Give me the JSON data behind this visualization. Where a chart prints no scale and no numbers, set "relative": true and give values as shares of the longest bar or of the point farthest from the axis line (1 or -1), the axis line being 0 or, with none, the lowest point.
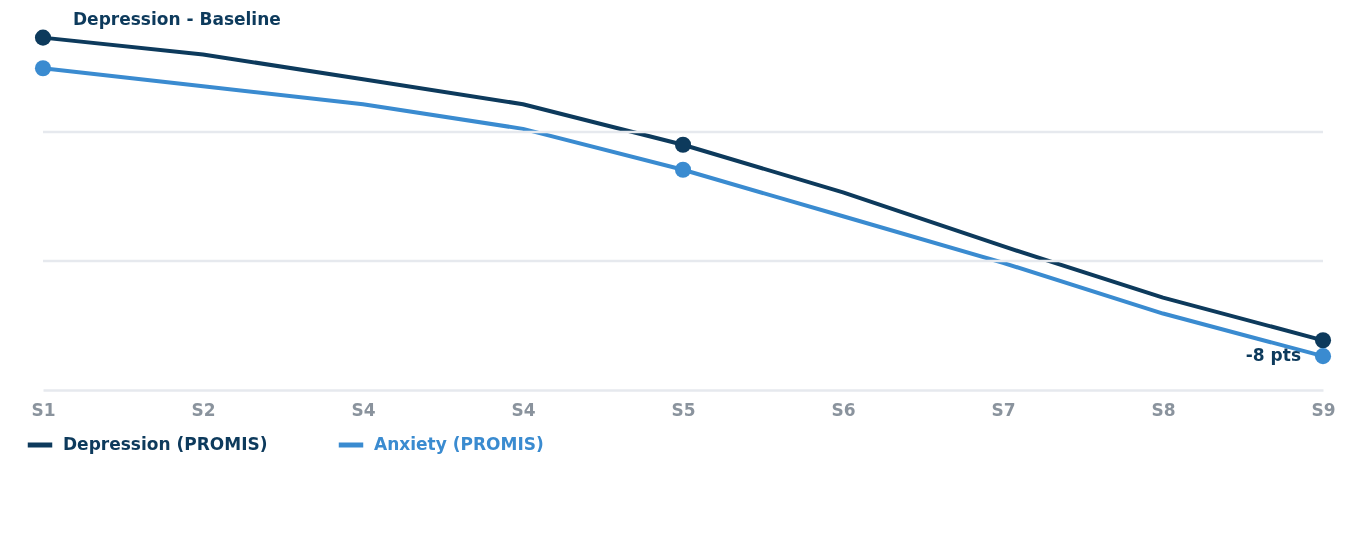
{
  "chart_data": {
    "type": "line",
    "relative": true,
    "categories": [
      "S1",
      "S2",
      "S4",
      "S4",
      "S5",
      "S6",
      "S7",
      "S8",
      "S9"
    ],
    "series": [
      {
        "name": "Depression (PROMIS)",
        "color": "#0d3a5c",
        "values": [
          1,
          0.952,
          0.882,
          0.811,
          0.696,
          0.561,
          0.408,
          0.262,
          0.141
        ]
      },
      {
        "name": "Anxiety (PROMIS)",
        "color": "#3a8bd0",
        "values": [
          0.913,
          0.862,
          0.811,
          0.741,
          0.625,
          0.493,
          0.361,
          0.217,
          0.096
        ]
      },
      {
        "type": "scatter",
        "color": "#0d3a5c",
        "x": [
          "S1",
          "S5",
          "S9"
        ],
        "values": [
          1,
          0.696,
          0.141
        ]
      },
      {
        "type": "scatter",
        "color": "#3a8bd0",
        "x": [
          "S1",
          "S5",
          "S9"
        ],
        "values": [
          0.913,
          0.625,
          0.096
        ]
      }
    ],
    "annotations": [
      {
        "text": "Depression - Baseline",
        "x": "S1",
        "y": 1
      },
      {
        "text": "-8 pts",
        "x": "S9",
        "y": 0.141
      }
    ],
    "ref_lines": [
      {
        "axis": "y",
        "value": 0.366,
        "color": "#e6e9ee"
      },
      {
        "axis": "y",
        "value": 0.732,
        "color": "#e6e9ee"
      }
    ],
    "legend": "bottom left",
    "line_style": "solid"
  }
}
